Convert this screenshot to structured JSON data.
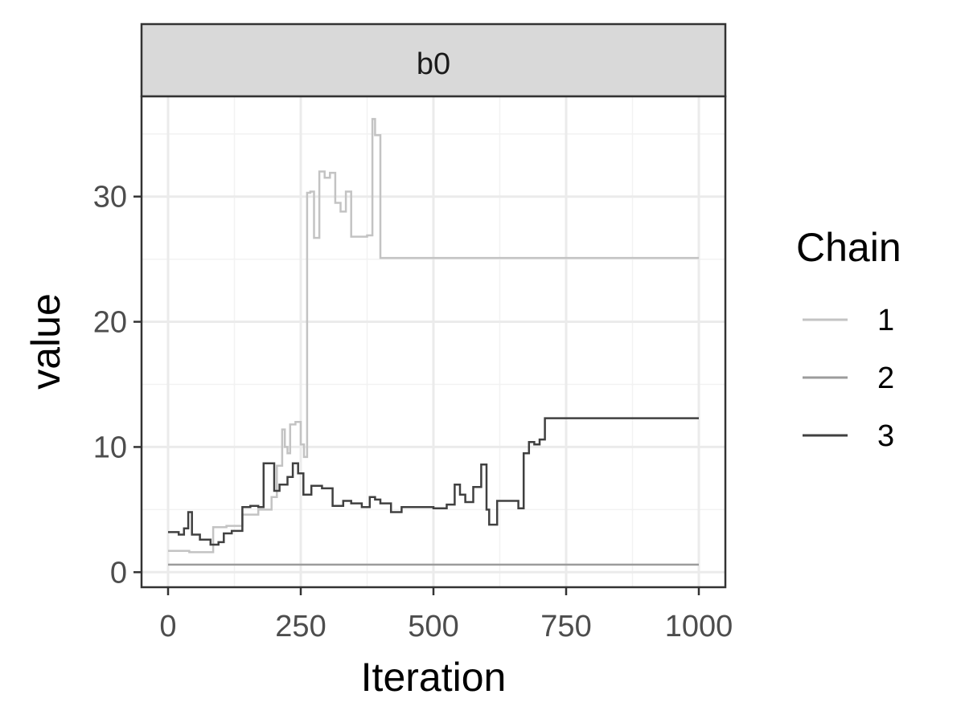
{
  "chart_data": {
    "type": "line",
    "facet_label": "b0",
    "xlabel": "Iteration",
    "ylabel": "value",
    "xlim": [
      -50,
      1050
    ],
    "ylim": [
      -1.2,
      38
    ],
    "xticks": [
      0,
      250,
      500,
      750,
      1000
    ],
    "xtick_labels": [
      "0",
      "250",
      "500",
      "750",
      "1000"
    ],
    "yticks": [
      0,
      10,
      20,
      30
    ],
    "ytick_labels": [
      "0",
      "10",
      "20",
      "30"
    ],
    "grid": true,
    "legend": {
      "title": "Chain",
      "placement": "right"
    },
    "series": [
      {
        "name": "1",
        "color": "#c3c3c3",
        "step": true,
        "x": [
          0,
          40,
          85,
          110,
          140,
          170,
          195,
          205,
          215,
          220,
          225,
          230,
          240,
          250,
          256,
          262,
          268,
          275,
          285,
          295,
          305,
          315,
          325,
          335,
          345,
          360,
          375,
          385,
          390,
          400,
          405,
          1000
        ],
        "y": [
          1.7,
          1.6,
          3.6,
          3.7,
          4.6,
          5.0,
          6.0,
          8.5,
          11.4,
          10.0,
          9.5,
          11.8,
          12.0,
          10.2,
          9.2,
          30.3,
          30.4,
          26.7,
          32.0,
          31.5,
          31.9,
          29.5,
          28.8,
          30.4,
          26.8,
          26.8,
          26.9,
          36.2,
          34.9,
          25.1,
          25.1,
          25.1
        ]
      },
      {
        "name": "2",
        "color": "#9c9c9c",
        "step": true,
        "x": [
          0,
          1000
        ],
        "y": [
          0.6,
          0.6
        ]
      },
      {
        "name": "3",
        "color": "#404040",
        "step": true,
        "x": [
          0,
          20,
          30,
          38,
          45,
          60,
          80,
          95,
          105,
          120,
          140,
          155,
          170,
          180,
          200,
          210,
          225,
          235,
          245,
          255,
          270,
          290,
          310,
          330,
          345,
          365,
          380,
          390,
          400,
          420,
          440,
          470,
          500,
          525,
          540,
          550,
          560,
          575,
          590,
          600,
          605,
          620,
          640,
          660,
          670,
          680,
          690,
          700,
          710,
          1000
        ],
        "y": [
          3.2,
          3.0,
          3.5,
          4.8,
          3.0,
          2.6,
          2.2,
          2.4,
          3.1,
          3.3,
          5.2,
          5.3,
          5.2,
          8.7,
          6.5,
          7.0,
          7.6,
          8.7,
          7.9,
          6.2,
          6.9,
          6.7,
          5.3,
          5.7,
          5.5,
          5.2,
          6.0,
          5.8,
          5.5,
          4.8,
          5.2,
          5.2,
          5.1,
          5.4,
          7.0,
          6.2,
          5.6,
          6.8,
          8.6,
          5.0,
          3.8,
          5.7,
          5.7,
          5.1,
          9.5,
          10.4,
          10.2,
          10.6,
          12.3,
          12.3
        ]
      }
    ]
  }
}
